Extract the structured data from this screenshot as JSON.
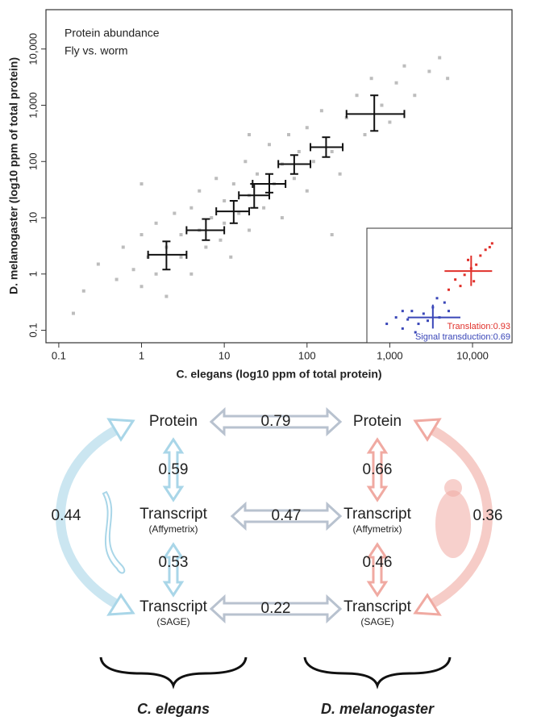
{
  "chart_data": [
    {
      "type": "scatter",
      "annotations": [
        "Protein abundance",
        "Fly vs. worm"
      ],
      "xlabel": "C. elegans (log10 ppm of total protein)",
      "ylabel": "D. melanogaster (log10 ppm of total protein)",
      "xscale": "log",
      "yscale": "log",
      "xlim": [
        0.07,
        30000
      ],
      "ylim": [
        0.06,
        50000
      ],
      "xticks": [
        0.1,
        1,
        10,
        100,
        {
          "value": 1000,
          "label": "1,000"
        },
        {
          "value": 10000,
          "label": "10,000"
        }
      ],
      "yticks": [
        0.1,
        1,
        10,
        100,
        {
          "value": 1000,
          "label": "1,000"
        },
        {
          "value": 10000,
          "label": "10,000"
        }
      ],
      "series": [
        {
          "color": "#bdbdbd",
          "x": [
            0.2,
            0.3,
            0.5,
            0.6,
            0.8,
            1,
            1,
            1.2,
            1.5,
            1.5,
            2,
            2,
            2.5,
            3,
            3,
            4,
            4,
            5,
            5,
            6,
            7,
            8,
            9,
            10,
            10,
            12,
            13,
            15,
            18,
            20,
            20,
            25,
            30,
            35,
            40,
            50,
            50,
            60,
            70,
            80,
            100,
            100,
            120,
            150,
            200,
            250,
            300,
            400,
            500,
            600,
            800,
            1000,
            1200,
            1500,
            2000,
            3000,
            5000,
            0.15,
            1,
            4000,
            20,
            200
          ],
          "y": [
            0.5,
            1.5,
            0.8,
            3,
            1.2,
            0.6,
            5,
            2,
            1,
            8,
            3,
            0.4,
            12,
            2,
            5,
            1,
            15,
            6,
            30,
            3,
            10,
            50,
            4,
            20,
            8,
            2,
            40,
            12,
            100,
            25,
            6,
            60,
            15,
            200,
            40,
            10,
            90,
            300,
            50,
            150,
            30,
            400,
            100,
            800,
            150,
            60,
            600,
            1500,
            300,
            3000,
            1000,
            500,
            2500,
            5000,
            1500,
            4000,
            3000,
            0.2,
            40,
            7000,
            300,
            5
          ]
        }
      ],
      "error_points": [
        {
          "x": 2,
          "y": 2.2,
          "xerr": [
            1.2,
            3.5
          ],
          "yerr": [
            1.2,
            3.8
          ]
        },
        {
          "x": 6,
          "y": 6,
          "xerr": [
            3.5,
            10
          ],
          "yerr": [
            4,
            9.5
          ]
        },
        {
          "x": 13,
          "y": 13,
          "xerr": [
            8,
            20
          ],
          "yerr": [
            8,
            20
          ]
        },
        {
          "x": 23,
          "y": 25,
          "xerr": [
            15,
            35
          ],
          "yerr": [
            15,
            40
          ]
        },
        {
          "x": 35,
          "y": 40,
          "xerr": [
            22,
            55
          ],
          "yerr": [
            28,
            60
          ]
        },
        {
          "x": 70,
          "y": 90,
          "xerr": [
            45,
            110
          ],
          "yerr": [
            60,
            130
          ]
        },
        {
          "x": 170,
          "y": 180,
          "xerr": [
            110,
            270
          ],
          "yerr": [
            120,
            270
          ]
        },
        {
          "x": 650,
          "y": 700,
          "xerr": [
            300,
            1500
          ],
          "yerr": [
            350,
            1500
          ]
        }
      ],
      "error_color": "#111"
    },
    {
      "type": "scatter",
      "xscale": "log",
      "yscale": "log",
      "xlim": [
        100,
        40000
      ],
      "ylim": [
        0.1,
        10000
      ],
      "series": [
        {
          "name": "Signal transduction:0.69",
          "color": "#3a47b8",
          "x": [
            200,
            300,
            400,
            500,
            600,
            800,
            1000,
            1200,
            1500,
            2000,
            2500,
            3000,
            400,
            700,
            1800
          ],
          "y": [
            0.5,
            1,
            0.3,
            0.8,
            2,
            0.5,
            1.5,
            0.7,
            3,
            1,
            5,
            2,
            2,
            0.2,
            8
          ],
          "cross": {
            "x": 1500,
            "y": 1,
            "xerr": [
              500,
              5000
            ],
            "yerr": [
              0.3,
              4
            ]
          }
        },
        {
          "name": "Translation:0.93",
          "color": "#e0302a",
          "x": [
            3000,
            4000,
            5000,
            6000,
            8000,
            10000,
            12000,
            15000,
            18000,
            20000,
            9000,
            7000
          ],
          "y": [
            20,
            60,
            30,
            100,
            200,
            300,
            800,
            1500,
            2000,
            3000,
            50,
            500
          ],
          "cross": {
            "x": 8000,
            "y": 150,
            "xerr": [
              2500,
              20000
            ],
            "yerr": [
              30,
              800
            ]
          }
        }
      ]
    }
  ],
  "diagram": {
    "worm": {
      "protein": "Protein",
      "affy": "Transcript",
      "affy_sub": "(Affymetrix)",
      "sage": "Transcript",
      "sage_sub": "(SAGE)",
      "protein_affy": "0.59",
      "affy_sage": "0.53",
      "protein_sage": "0.44",
      "species": "C. elegans"
    },
    "fly": {
      "protein": "Protein",
      "affy": "Transcript",
      "affy_sub": "(Affymetrix)",
      "sage": "Transcript",
      "sage_sub": "(SAGE)",
      "protein_affy": "0.66",
      "affy_sage": "0.46",
      "protein_sage": "0.36",
      "species": "D. melanogaster"
    },
    "between": {
      "protein": "0.79",
      "affy": "0.47",
      "sage": "0.22"
    }
  }
}
